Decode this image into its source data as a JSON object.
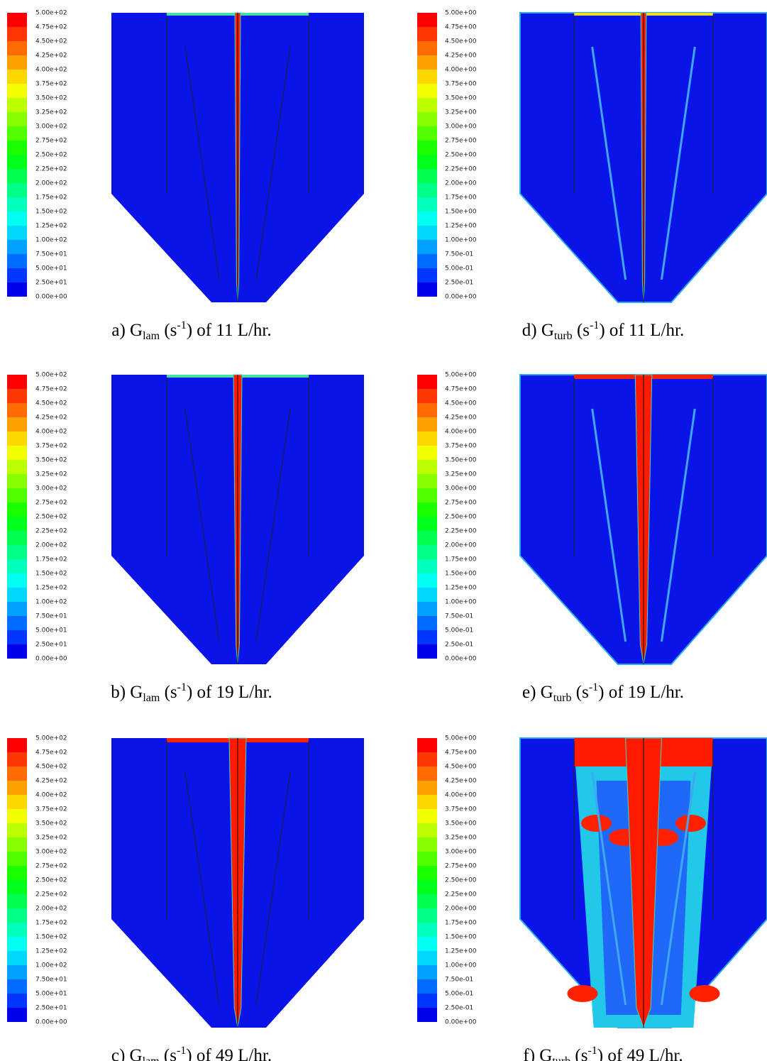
{
  "panels": [
    {
      "colorbar": [
        "5.00e+02",
        "4.75e+02",
        "4.50e+02",
        "4.25e+02",
        "4.00e+02",
        "3.75e+02",
        "3.50e+02",
        "3.25e+02",
        "3.00e+02",
        "2.75e+02",
        "2.50e+02",
        "2.25e+02",
        "2.00e+02",
        "1.75e+02",
        "1.50e+02",
        "1.25e+02",
        "1.00e+02",
        "7.50e+01",
        "5.00e+01",
        "2.50e+01",
        "0.00e+00"
      ],
      "caption": {
        "prefix": "a) G",
        "sub": "lam",
        "mid": " (s",
        "sup": "-1",
        "suffix": ") of 11 L/hr."
      }
    },
    {
      "colorbar": [
        "5.00e+02",
        "4.75e+02",
        "4.50e+02",
        "4.25e+02",
        "4.00e+02",
        "3.75e+02",
        "3.50e+02",
        "3.25e+02",
        "3.00e+02",
        "2.75e+02",
        "2.50e+02",
        "2.25e+02",
        "2.00e+02",
        "1.75e+02",
        "1.50e+02",
        "1.25e+02",
        "1.00e+02",
        "7.50e+01",
        "5.00e+01",
        "2.50e+01",
        "0.00e+00"
      ],
      "caption": {
        "prefix": "b) G",
        "sub": "lam",
        "mid": " (s",
        "sup": "-1",
        "suffix": ") of 19 L/hr."
      }
    },
    {
      "colorbar": [
        "5.00e+02",
        "4.75e+02",
        "4.50e+02",
        "4.25e+02",
        "4.00e+02",
        "3.75e+02",
        "3.50e+02",
        "3.25e+02",
        "3.00e+02",
        "2.75e+02",
        "2.50e+02",
        "2.25e+02",
        "2.00e+02",
        "1.75e+02",
        "1.50e+02",
        "1.25e+02",
        "1.00e+02",
        "7.50e+01",
        "5.00e+01",
        "2.50e+01",
        "0.00e+00"
      ],
      "caption": {
        "prefix": "c) G",
        "sub": "lam",
        "mid": " (s",
        "sup": "-1",
        "suffix": ") of 49 L/hr."
      }
    },
    {
      "colorbar": [
        "5.00e+00",
        "4.75e+00",
        "4.50e+00",
        "4.25e+00",
        "4.00e+00",
        "3.75e+00",
        "3.50e+00",
        "3.25e+00",
        "3.00e+00",
        "2.75e+00",
        "2.50e+00",
        "2.25e+00",
        "2.00e+00",
        "1.75e+00",
        "1.50e+00",
        "1.25e+00",
        "1.00e+00",
        "7.50e-01",
        "5.00e-01",
        "2.50e-01",
        "0.00e+00"
      ],
      "caption": {
        "prefix": "d) G",
        "sub": "turb",
        "mid": " (s",
        "sup": "-1",
        "suffix": ") of 11 L/hr."
      }
    },
    {
      "colorbar": [
        "5.00e+00",
        "4.75e+00",
        "4.50e+00",
        "4.25e+00",
        "4.00e+00",
        "3.75e+00",
        "3.50e+00",
        "3.25e+00",
        "3.00e+00",
        "2.75e+00",
        "2.50e+00",
        "2.25e+00",
        "2.00e+00",
        "1.75e+00",
        "1.50e+00",
        "1.25e+00",
        "1.00e+00",
        "7.50e-01",
        "5.00e-01",
        "2.50e-01",
        "0.00e+00"
      ],
      "caption": {
        "prefix": "e) G",
        "sub": "turb",
        "mid": " (s",
        "sup": "-1",
        "suffix": ") of 19 L/hr."
      }
    },
    {
      "colorbar": [
        "5.00e+00",
        "4.75e+00",
        "4.50e+00",
        "4.25e+00",
        "4.00e+00",
        "3.75e+00",
        "3.50e+00",
        "3.25e+00",
        "3.00e+00",
        "2.75e+00",
        "2.50e+00",
        "2.25e+00",
        "2.00e+00",
        "1.75e+00",
        "1.50e+00",
        "1.25e+00",
        "1.00e+00",
        "7.50e-01",
        "5.00e-01",
        "2.50e-01",
        "0.00e+00"
      ],
      "caption": {
        "prefix": "f) G",
        "sub": "turb",
        "mid": " (s",
        "sup": "-1",
        "suffix": ") of 49 L/hr."
      }
    }
  ]
}
